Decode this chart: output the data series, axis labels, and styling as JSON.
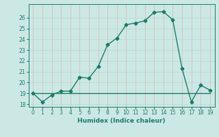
{
  "xlabel": "Humidex (Indice chaleur)",
  "ylabel": "",
  "x": [
    0,
    1,
    2,
    3,
    4,
    5,
    6,
    7,
    8,
    9,
    10,
    11,
    12,
    13,
    14,
    15,
    16,
    17,
    18,
    19
  ],
  "y_line1": [
    19.0,
    18.2,
    18.85,
    19.2,
    19.2,
    20.5,
    20.4,
    21.5,
    23.5,
    24.1,
    25.35,
    25.5,
    25.7,
    26.5,
    26.55,
    25.8,
    21.3,
    18.2,
    19.75,
    19.3
  ],
  "y_line2": [
    19,
    19,
    19,
    19,
    19,
    19,
    19,
    19,
    19,
    19,
    19,
    19,
    19,
    19,
    19,
    19,
    19,
    19,
    19,
    19
  ],
  "line_color": "#1a7a6a",
  "bg_color": "#cce8e4",
  "grid_color_h": "#b8d8d2",
  "grid_color_v": "#d4b8b8",
  "ylim": [
    17.75,
    27.25
  ],
  "xlim": [
    -0.5,
    19.5
  ],
  "yticks": [
    18,
    19,
    20,
    21,
    22,
    23,
    24,
    25,
    26
  ],
  "xticks": [
    0,
    1,
    2,
    3,
    4,
    5,
    6,
    7,
    8,
    9,
    10,
    11,
    12,
    13,
    14,
    15,
    16,
    17,
    18,
    19
  ],
  "marker": "D",
  "markersize": 2.5,
  "linewidth": 1.0,
  "tick_fontsize": 5.5,
  "xlabel_fontsize": 6.5
}
